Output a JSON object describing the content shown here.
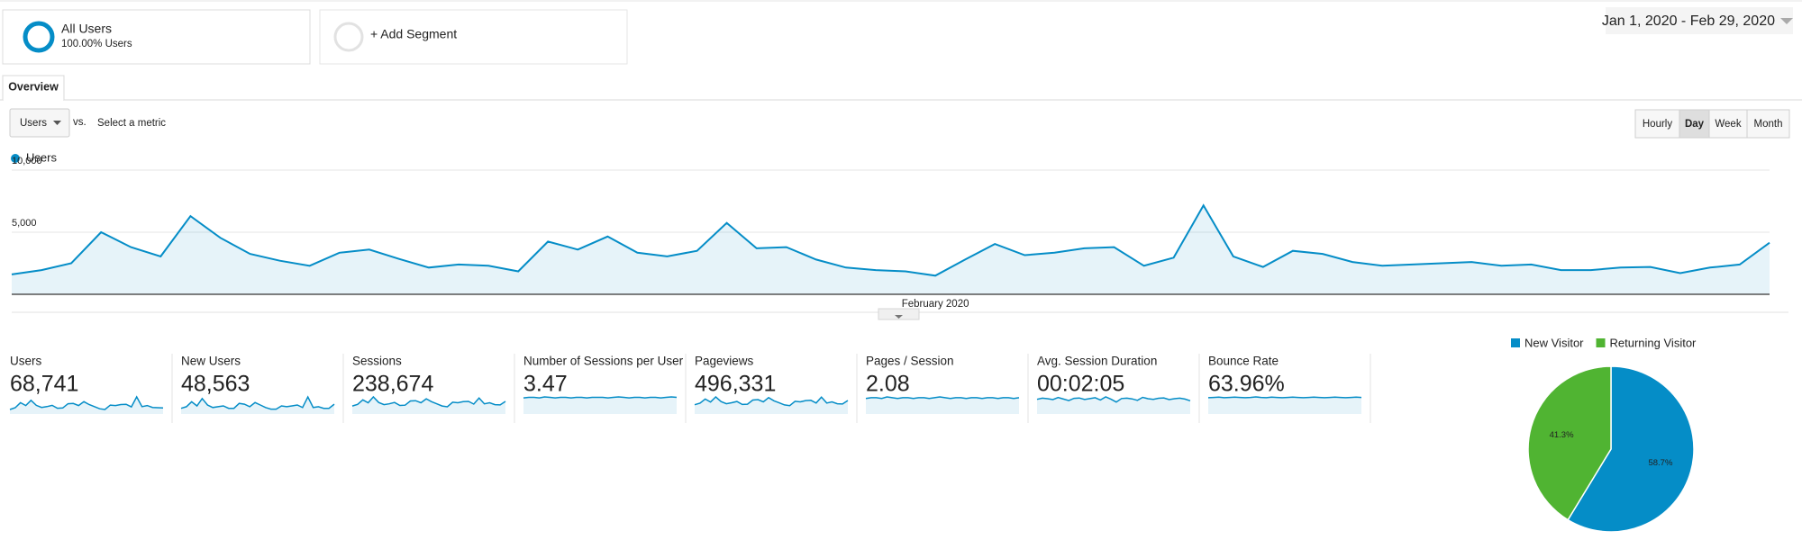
{
  "segments": [
    {
      "title": "All Users",
      "subtitle": "100.00% Users"
    },
    {
      "title": "+ Add Segment"
    }
  ],
  "date_range": "Jan 1, 2020 - Feb 29, 2020",
  "tab": "Overview",
  "metric_selector": "Users",
  "vs": "vs.",
  "select_metric": "Select a metric",
  "granularity": [
    "Hourly",
    "Day",
    "Week",
    "Month"
  ],
  "chart_data": [
    {
      "type": "line",
      "categories": [
        null,
        null,
        null,
        null,
        null,
        null,
        null,
        null,
        null,
        null,
        null,
        null,
        null,
        null,
        null,
        null,
        null,
        null,
        null,
        null,
        null,
        null,
        null,
        null,
        null,
        null,
        null,
        null,
        null,
        null,
        null,
        "February 2020",
        null,
        null,
        null,
        null,
        null,
        null,
        null,
        null,
        null,
        null,
        null,
        null,
        null,
        null,
        null,
        null,
        null,
        null,
        null,
        null,
        null,
        null,
        null,
        null,
        null,
        null,
        null,
        null
      ],
      "series": [
        {
          "name": "Users",
          "color": "#058dc7",
          "values": [
            1600,
            1950,
            2500,
            5000,
            3800,
            3050,
            6300,
            4550,
            3250,
            2700,
            2300,
            3350,
            3600,
            2850,
            2150,
            2400,
            2300,
            1850,
            4250,
            3600,
            4650,
            3350,
            3050,
            3500,
            5750,
            3700,
            3800,
            2800,
            2150,
            1950,
            1850,
            1500,
            2800,
            4050,
            3150,
            3350,
            3700,
            3800,
            2300,
            2950,
            7150,
            3050,
            2200,
            3500,
            3250,
            2600,
            2300,
            2400,
            2500,
            2600,
            2300,
            2400,
            1950,
            1950,
            2150,
            2200,
            1700,
            2150,
            2400,
            4150
          ]
        }
      ],
      "ylim": [
        0,
        10000
      ],
      "yticks": [
        {
          "value": 5000,
          "label": "5,000"
        },
        {
          "value": 10000,
          "label": "10,000"
        }
      ],
      "grid": true
    },
    {
      "type": "pie",
      "categories": [
        "New Visitor",
        "Returning Visitor"
      ],
      "values": [
        58.7,
        41.3
      ],
      "value_labels": [
        "58.7%",
        "41.3%"
      ],
      "colors": [
        "#058dc7",
        "#50b432"
      ],
      "legend": "top"
    }
  ],
  "metrics": [
    {
      "label": "Users",
      "value": "68,741",
      "sparkline": [
        1700,
        2400,
        4300,
        3200,
        5200,
        3300,
        2500,
        2800,
        3300,
        2200,
        2300,
        3900,
        4000,
        3200,
        4700,
        3600,
        2800,
        2000,
        1700,
        3400,
        3200,
        3600,
        3700,
        2700,
        6500,
        2800,
        3200,
        2500,
        2400,
        2300
      ]
    },
    {
      "label": "New Users",
      "value": "48,563",
      "sparkline": [
        700,
        900,
        1500,
        1000,
        1900,
        1100,
        800,
        900,
        1000,
        700,
        700,
        1300,
        1200,
        900,
        1400,
        1100,
        800,
        600,
        600,
        1000,
        900,
        1000,
        1100,
        800,
        2100,
        800,
        900,
        700,
        700,
        1200
      ]
    },
    {
      "label": "Sessions",
      "value": "238,674",
      "sparkline": [
        3000,
        3600,
        5300,
        4200,
        6400,
        4300,
        3500,
        3800,
        4300,
        3200,
        3300,
        4900,
        5000,
        4200,
        5700,
        4600,
        3800,
        3000,
        2700,
        4400,
        4200,
        4600,
        4700,
        3700,
        6000,
        3800,
        4200,
        3500,
        3400,
        4700
      ]
    },
    {
      "label": "Number of Sessions per User",
      "value": "3.47",
      "sparkline": [
        3.4,
        3.5,
        3.5,
        3.4,
        3.6,
        3.5,
        3.4,
        3.5,
        3.5,
        3.4,
        3.5,
        3.5,
        3.4,
        3.5,
        3.5,
        3.5,
        3.4,
        3.5,
        3.6,
        3.5,
        3.4,
        3.5,
        3.5,
        3.4,
        3.5,
        3.5,
        3.4,
        3.5,
        3.6,
        3.5
      ]
    },
    {
      "label": "Pageviews",
      "value": "496,331",
      "sparkline": [
        6500,
        7600,
        10500,
        8400,
        12000,
        8700,
        7200,
        7900,
        8800,
        6700,
        6900,
        9800,
        10100,
        8500,
        11500,
        9300,
        7800,
        6400,
        5900,
        8900,
        8500,
        9400,
        9600,
        7700,
        11800,
        7700,
        8500,
        7200,
        7000,
        9500
      ]
    },
    {
      "label": "Pages / Session",
      "value": "2.08",
      "sparkline": [
        2.0,
        2.1,
        2.1,
        2.0,
        2.2,
        2.1,
        2.0,
        2.1,
        2.1,
        2.0,
        2.1,
        2.1,
        2.0,
        2.1,
        2.2,
        2.1,
        2.0,
        2.1,
        2.1,
        2.0,
        2.1,
        2.1,
        2.0,
        2.1,
        2.1,
        2.0,
        2.1,
        2.1,
        2.0,
        2.1
      ]
    },
    {
      "label": "Avg. Session Duration",
      "value": "00:02:05",
      "sparkline": [
        120,
        130,
        125,
        118,
        135,
        122,
        110,
        128,
        131,
        119,
        126,
        133,
        115,
        140,
        121,
        98,
        127,
        130,
        124,
        112,
        136,
        125,
        120,
        129,
        132,
        118,
        125,
        130,
        122,
        108
      ]
    },
    {
      "label": "Bounce Rate",
      "value": "63.96%",
      "sparkline": [
        63,
        64,
        65,
        63,
        64,
        65,
        64,
        63,
        64,
        66,
        64,
        63,
        65,
        64,
        63,
        64,
        65,
        64,
        63,
        64,
        65,
        64,
        63,
        64,
        65,
        64,
        63,
        64,
        65,
        64
      ]
    }
  ]
}
